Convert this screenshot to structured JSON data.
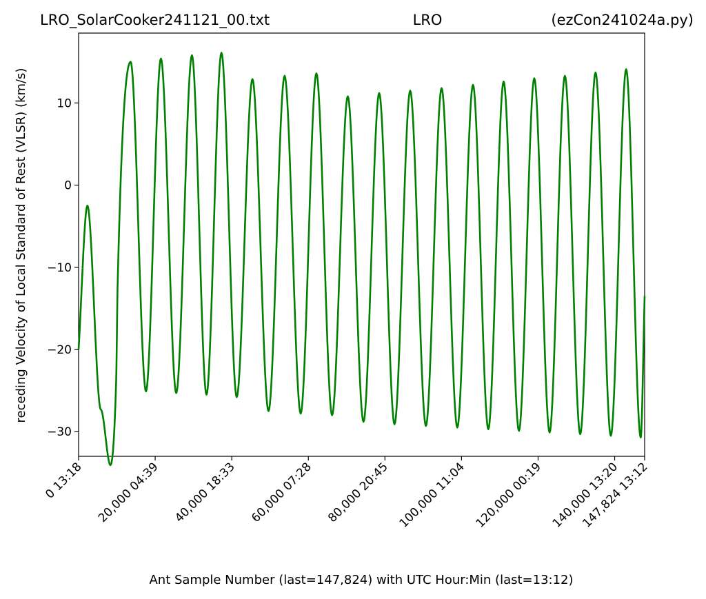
{
  "chart_data": {
    "type": "line",
    "title_left": "LRO_SolarCooker241121_00.txt",
    "title_center": "LRO",
    "title_right": "(ezCon241024a.py)",
    "xlabel": "Ant Sample Number (last=147,824) with UTC Hour:Min (last=13:12)",
    "ylabel": "receding Velocity of Local Standard of Rest (VLSR) (km/s)",
    "xlim": [
      0,
      147824
    ],
    "ylim": [
      -33,
      18.5
    ],
    "grid": false,
    "line_color": "#008000",
    "yticks": [
      -30,
      -20,
      -10,
      0,
      10
    ],
    "ytick_labels": [
      "−30",
      "−20",
      "−10",
      "0",
      "10"
    ],
    "xticks": [
      0,
      20000,
      40000,
      60000,
      80000,
      100000,
      120000,
      140000,
      147824
    ],
    "xtick_labels": [
      "0  13:18",
      "20,000  04:39",
      "40,000  18:33",
      "60,000  07:28",
      "80,000  20:45",
      "100,000  11:04",
      "120,000  00:19",
      "140,000  13:20",
      "147,824  13:12"
    ],
    "series": [
      {
        "x": [
          0,
          2300,
          5800,
          9800,
          10200,
          13600,
          17600,
          21500,
          25500,
          29600,
          33400,
          37300,
          41300,
          45400,
          49600,
          53800,
          58000,
          62100,
          66200,
          70300,
          74400,
          78500,
          82500,
          86600,
          90700,
          94800,
          98900,
          103000,
          107000,
          111000,
          115000,
          119000,
          123000,
          127000,
          131000,
          135000,
          139000,
          143000,
          146800,
          147824
        ],
        "y": [
          -20,
          -2.5,
          -27.3,
          -24,
          -12,
          15,
          -25.1,
          15.4,
          -25.3,
          15.8,
          -25.5,
          16.1,
          -25.8,
          12.9,
          -27.5,
          13.3,
          -27.8,
          13.6,
          -28,
          10.8,
          -28.8,
          11.2,
          -29.1,
          11.5,
          -29.3,
          11.8,
          -29.5,
          12.2,
          -29.7,
          12.6,
          -29.9,
          13,
          -30.1,
          13.3,
          -30.3,
          13.7,
          -30.5,
          14.1,
          -30.7,
          -13.5
        ]
      }
    ]
  }
}
